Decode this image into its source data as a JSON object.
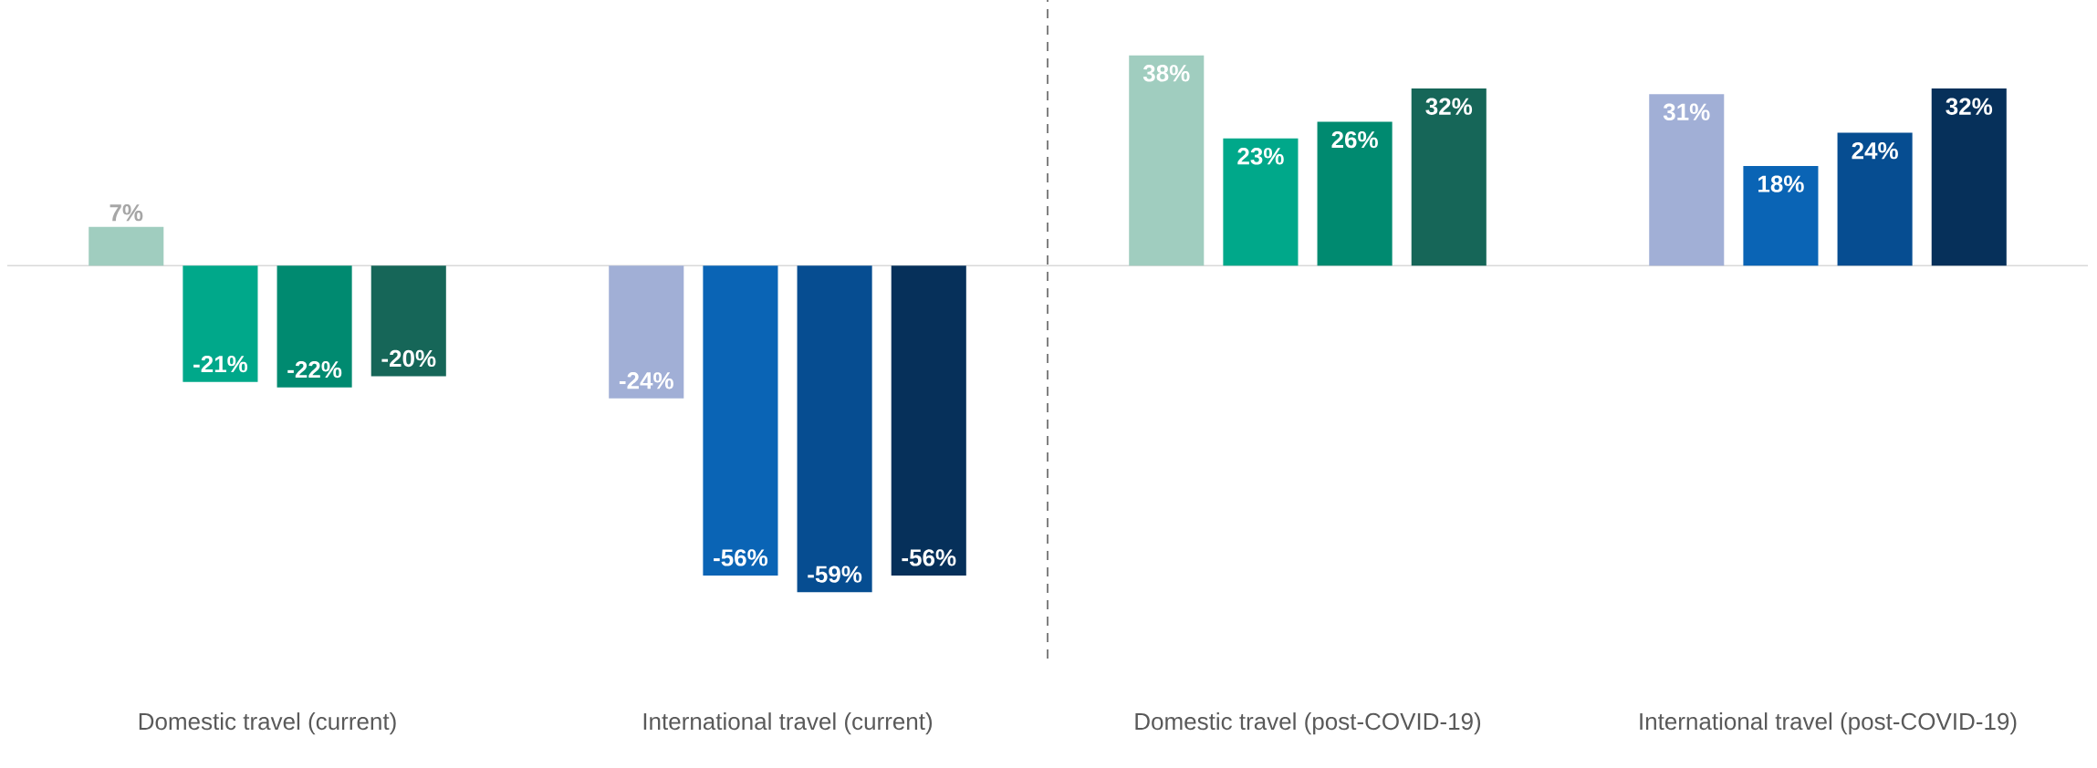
{
  "chart_data": {
    "type": "bar",
    "categories": [
      "Domestic travel (current)",
      "International travel (current)",
      "Domestic travel (post-COVID-19)",
      "International travel (post-COVID-19)"
    ],
    "series": [
      {
        "colors": [
          "#a0cdbf",
          "#a1afd6",
          "#a0cdbf",
          "#a1afd6"
        ],
        "values": [
          7,
          -24,
          38,
          31
        ],
        "value_labels": [
          "7%",
          "-24%",
          "38%",
          "31%"
        ]
      },
      {
        "colors": [
          "#00a88a",
          "#0a64b5",
          "#00a88a",
          "#0a64b5"
        ],
        "values": [
          -21,
          -56,
          23,
          18
        ],
        "value_labels": [
          "-21%",
          "-56%",
          "23%",
          "18%"
        ]
      },
      {
        "colors": [
          "#008a70",
          "#064d91",
          "#008a70",
          "#064d91"
        ],
        "values": [
          -22,
          -59,
          26,
          24
        ],
        "value_labels": [
          "-22%",
          "-59%",
          "26%",
          "24%"
        ]
      },
      {
        "colors": [
          "#166658",
          "#06305a",
          "#166658",
          "#06305a"
        ],
        "values": [
          -20,
          -56,
          32,
          32
        ],
        "value_labels": [
          "-20%",
          "-56%",
          "32%",
          "32%"
        ]
      }
    ],
    "ylim": [
      -71,
      48
    ]
  }
}
